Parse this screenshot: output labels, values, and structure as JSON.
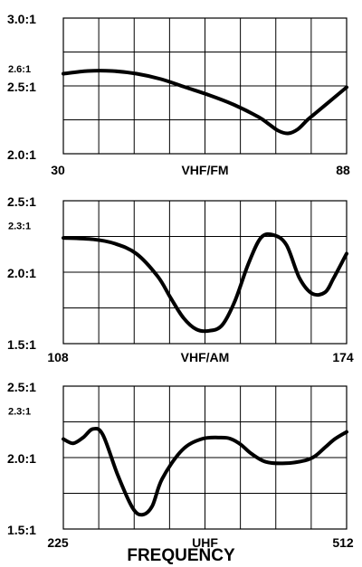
{
  "chart_data": [
    {
      "type": "line",
      "panel": "VHF/FM",
      "xlabel": "VHF/FM",
      "ylabel": "",
      "xlim": [
        30,
        88
      ],
      "ylim": [
        2.0,
        3.0
      ],
      "grid": true,
      "x_tick_labels": [
        "30",
        "88"
      ],
      "y_tick_labels": [
        {
          "value": 3.0,
          "label": "3.0:1"
        },
        {
          "value": 2.6,
          "label": "2.6:1"
        },
        {
          "value": 2.5,
          "label": "2.5:1"
        },
        {
          "value": 2.0,
          "label": "2.0:1"
        }
      ],
      "series": [
        {
          "x": [
            30,
            35,
            40,
            45,
            50,
            55,
            60,
            65,
            70,
            72,
            74,
            76,
            78,
            80,
            82,
            85,
            88
          ],
          "y": [
            2.59,
            2.61,
            2.61,
            2.59,
            2.55,
            2.49,
            2.43,
            2.36,
            2.27,
            2.22,
            2.17,
            2.15,
            2.18,
            2.25,
            2.31,
            2.4,
            2.49
          ]
        }
      ]
    },
    {
      "type": "line",
      "panel": "VHF/AM",
      "xlabel": "VHF/AM",
      "ylabel": "",
      "xlim": [
        108,
        174
      ],
      "ylim": [
        1.5,
        2.5
      ],
      "grid": true,
      "x_tick_labels": [
        "108",
        "174"
      ],
      "y_tick_labels": [
        {
          "value": 2.5,
          "label": "2.5:1"
        },
        {
          "value": 2.3,
          "label": "2.3:1"
        },
        {
          "value": 2.0,
          "label": "2.0:1"
        },
        {
          "value": 1.5,
          "label": "1.5:1"
        }
      ],
      "series": [
        {
          "x": [
            108,
            115,
            120,
            125,
            130,
            133,
            136,
            139,
            142,
            145,
            148,
            151,
            154,
            157,
            160,
            163,
            166,
            169,
            171,
            174
          ],
          "y": [
            2.24,
            2.23,
            2.2,
            2.13,
            1.97,
            1.82,
            1.68,
            1.6,
            1.59,
            1.63,
            1.8,
            2.05,
            2.24,
            2.26,
            2.19,
            1.96,
            1.85,
            1.86,
            1.96,
            2.13
          ]
        }
      ]
    },
    {
      "type": "line",
      "panel": "UHF",
      "xlabel": "UHF",
      "ylabel": "",
      "xlim": [
        225,
        512
      ],
      "ylim": [
        1.5,
        2.5
      ],
      "grid": true,
      "x_tick_labels": [
        "225",
        "512"
      ],
      "y_tick_labels": [
        {
          "value": 2.5,
          "label": "2.5:1"
        },
        {
          "value": 2.3,
          "label": "2.3:1"
        },
        {
          "value": 2.0,
          "label": "2.0:1"
        },
        {
          "value": 1.5,
          "label": "1.5:1"
        }
      ],
      "series": [
        {
          "x": [
            225,
            235,
            245,
            255,
            265,
            280,
            295,
            305,
            315,
            325,
            345,
            365,
            385,
            395,
            405,
            415,
            430,
            450,
            470,
            480,
            490,
            500,
            512
          ],
          "y": [
            2.13,
            2.1,
            2.14,
            2.2,
            2.16,
            1.88,
            1.65,
            1.6,
            1.66,
            1.85,
            2.05,
            2.13,
            2.14,
            2.13,
            2.09,
            2.03,
            1.97,
            1.96,
            1.98,
            2.01,
            2.07,
            2.13,
            2.18
          ]
        }
      ]
    }
  ],
  "footer_label": "FREQUENCY"
}
